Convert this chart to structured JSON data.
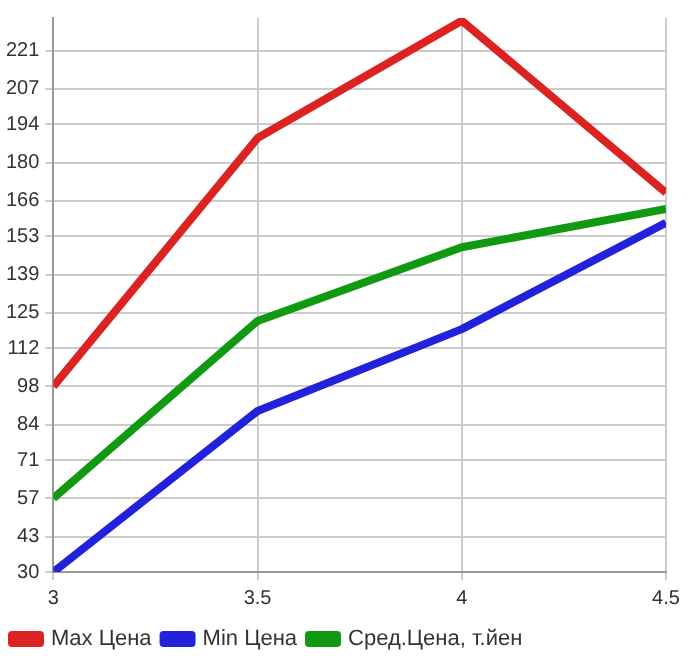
{
  "chart_data": {
    "type": "line",
    "x": [
      3,
      3.5,
      4,
      4.5
    ],
    "series": [
      {
        "name": "Max Цена",
        "color": "#dd2222",
        "values": [
          98,
          189,
          232,
          169
        ]
      },
      {
        "name": "Min Цена",
        "color": "#2222dd",
        "values": [
          30,
          89,
          119,
          158
        ]
      },
      {
        "name": "Сред.Цена, т.йен",
        "color": "#119911",
        "values": [
          57,
          122,
          149,
          163
        ]
      }
    ],
    "xlim": [
      3,
      4.5
    ],
    "xticks": [
      3,
      3.5,
      4,
      4.5
    ],
    "ylim": [
      30,
      233
    ],
    "yticks": [
      30,
      43,
      57,
      71,
      84,
      98,
      112,
      125,
      139,
      153,
      166,
      180,
      194,
      207,
      221
    ],
    "grid": true,
    "legend": "bottom",
    "marker": "none",
    "line_style": "solid"
  }
}
